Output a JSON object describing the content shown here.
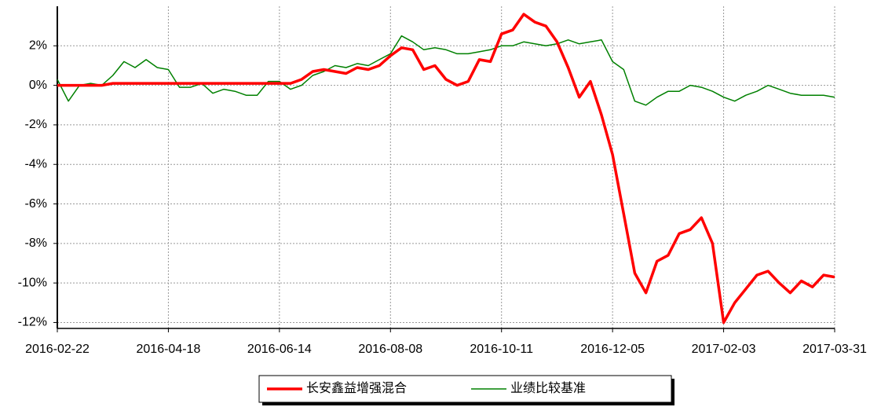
{
  "chart_data": {
    "type": "line",
    "categories": [
      "2016-02-22",
      null,
      null,
      null,
      null,
      null,
      null,
      null,
      null,
      null,
      "2016-04-18",
      null,
      null,
      null,
      null,
      null,
      null,
      null,
      null,
      null,
      "2016-06-14",
      null,
      null,
      null,
      null,
      null,
      null,
      null,
      null,
      null,
      "2016-08-08",
      null,
      null,
      null,
      null,
      null,
      null,
      null,
      null,
      null,
      "2016-10-11",
      null,
      null,
      null,
      null,
      null,
      null,
      null,
      null,
      null,
      "2016-12-05",
      null,
      null,
      null,
      null,
      null,
      null,
      null,
      null,
      null,
      "2017-02-03",
      null,
      null,
      null,
      null,
      null,
      null,
      null,
      null,
      null,
      "2017-03-31"
    ],
    "series": [
      {
        "name": "长安鑫益增强混合",
        "color": "#ff0000",
        "values": [
          0,
          0,
          0,
          0,
          0,
          0.1,
          0.1,
          0.1,
          0.1,
          0.1,
          0.1,
          0.1,
          0.1,
          0.1,
          0.1,
          0.1,
          0.1,
          0.1,
          0.1,
          0.1,
          0.1,
          0.1,
          0.3,
          0.7,
          0.8,
          0.7,
          0.6,
          0.9,
          0.8,
          1.0,
          1.5,
          1.9,
          1.8,
          0.8,
          1.0,
          0.3,
          0.0,
          0.2,
          1.3,
          1.2,
          2.6,
          2.8,
          3.6,
          3.2,
          3.0,
          2.2,
          0.9,
          -0.6,
          0.2,
          -1.5,
          -3.5,
          -6.5,
          -9.5,
          -10.5,
          -8.9,
          -8.6,
          -7.5,
          -7.3,
          -6.7,
          -8.0,
          -12.0,
          -11.0,
          -10.3,
          -9.6,
          -9.4,
          -10.0,
          -10.5,
          -9.9,
          -10.2,
          -9.6,
          -9.7
        ]
      },
      {
        "name": "业绩比较基准",
        "color": "#008000",
        "values": [
          0.3,
          -0.8,
          0.0,
          0.1,
          0.0,
          0.5,
          1.2,
          0.9,
          1.3,
          0.9,
          0.8,
          -0.1,
          -0.1,
          0.1,
          -0.4,
          -0.2,
          -0.3,
          -0.5,
          -0.5,
          0.2,
          0.2,
          -0.2,
          0.0,
          0.5,
          0.7,
          1.0,
          0.9,
          1.1,
          1.0,
          1.3,
          1.6,
          2.5,
          2.2,
          1.8,
          1.9,
          1.8,
          1.6,
          1.6,
          1.7,
          1.8,
          2.0,
          2.0,
          2.2,
          2.1,
          2.0,
          2.1,
          2.3,
          2.1,
          2.2,
          2.3,
          1.2,
          0.8,
          -0.8,
          -1.0,
          -0.6,
          -0.3,
          -0.3,
          0.0,
          -0.1,
          -0.3,
          -0.6,
          -0.8,
          -0.5,
          -0.3,
          0.0,
          -0.2,
          -0.4,
          -0.5,
          -0.5,
          -0.5,
          -0.6
        ]
      }
    ],
    "ylim": [
      -12.3,
      4
    ],
    "yticks": [
      {
        "value": 2,
        "label": "2%"
      },
      {
        "value": 0,
        "label": "0%"
      },
      {
        "value": -2,
        "label": "-2%"
      },
      {
        "value": -4,
        "label": "-4%"
      },
      {
        "value": -6,
        "label": "-6%"
      },
      {
        "value": -8,
        "label": "-8%"
      },
      {
        "value": -10,
        "label": "-10%"
      },
      {
        "value": -12,
        "label": "-12%"
      }
    ],
    "grid": true
  }
}
